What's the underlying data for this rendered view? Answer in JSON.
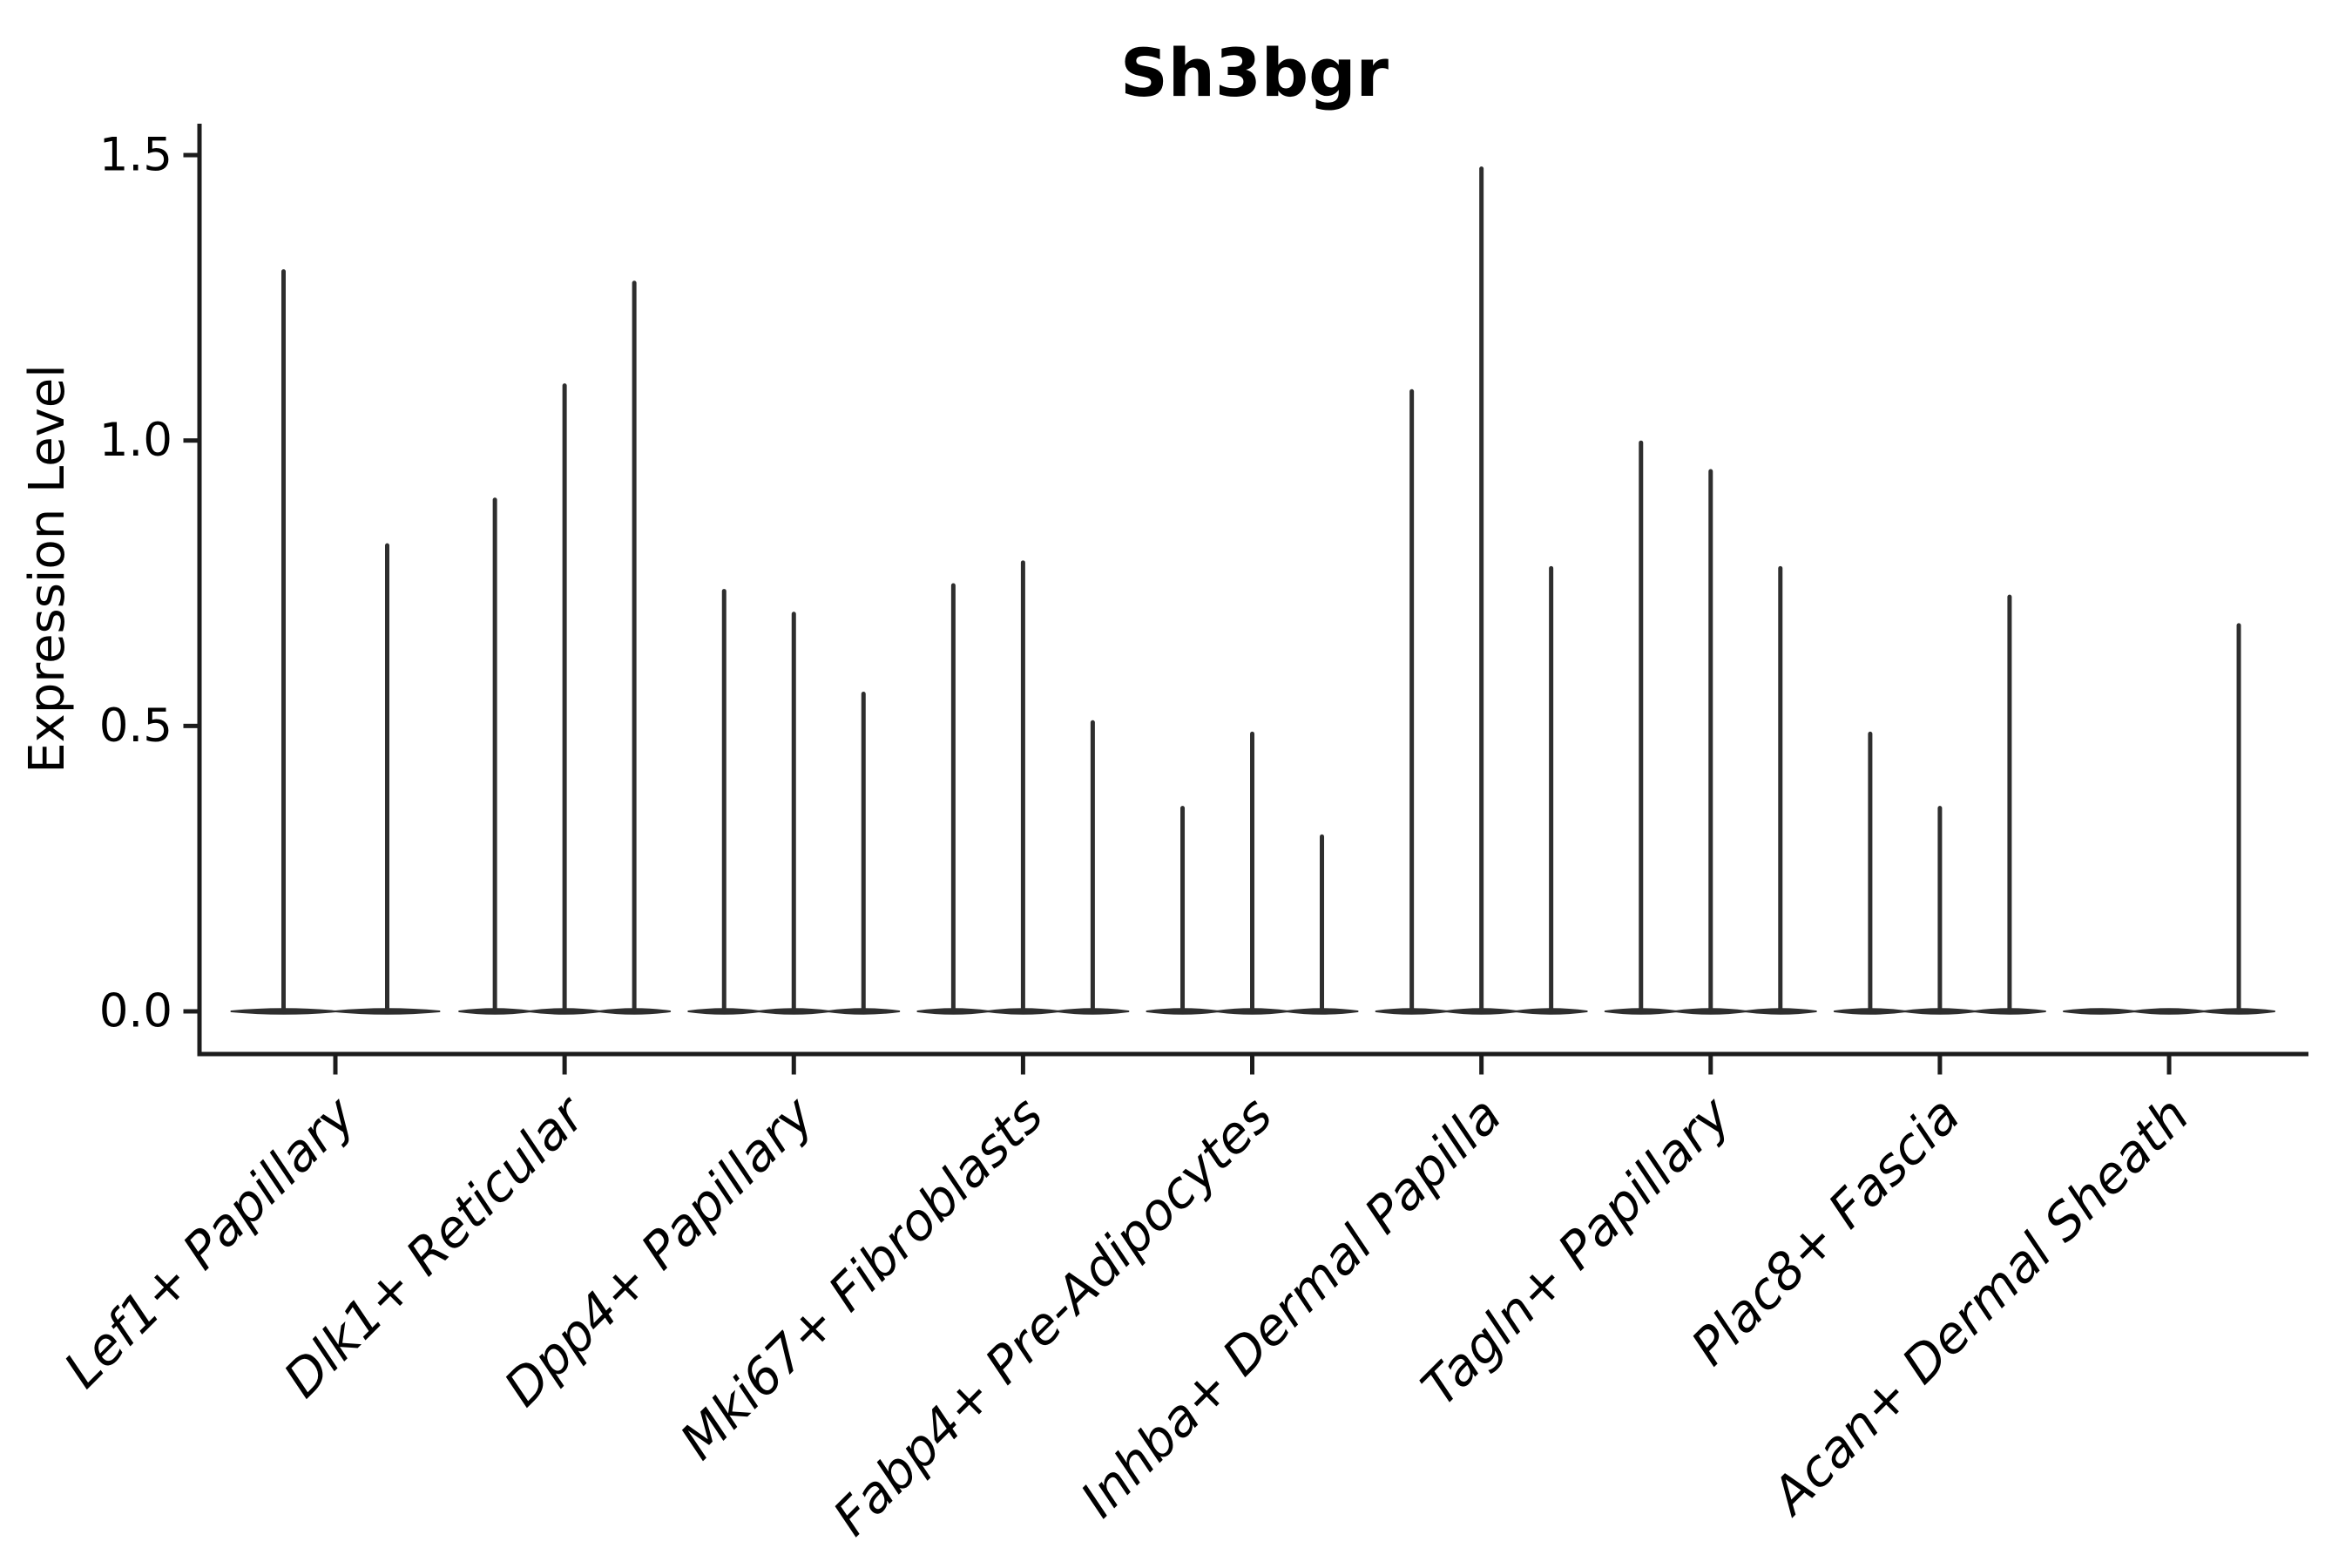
{
  "chart_data": {
    "type": "violin",
    "title": "Sh3bgr",
    "ylabel": "Expression Level",
    "xlabel": "",
    "ylim": [
      -0.07,
      1.56
    ],
    "yticks": [
      0.0,
      0.5,
      1.0,
      1.5
    ],
    "ytick_labels": [
      "0.0",
      "0.5",
      "1.0",
      "1.5"
    ],
    "grid": false,
    "legend": "none",
    "categories": [
      "Lef1+ Papillary",
      "Dlk1+ Reticular",
      "Dpp4+ Papillary",
      "Mki67+ Fibroblasts",
      "Fabp4+ Pre-Adipocytes",
      "Inhba+ Dermal Papilla",
      "Tagln+ Papillary",
      "Plac8+ Fascia",
      "Acan+ Dermal Sheath"
    ],
    "groups": [
      {
        "category": "Lef1+ Papillary",
        "peak_values": [
          1.3,
          0.82
        ]
      },
      {
        "category": "Dlk1+ Reticular",
        "peak_values": [
          0.9,
          1.1,
          1.28
        ]
      },
      {
        "category": "Dpp4+ Papillary",
        "peak_values": [
          0.74,
          0.7,
          0.56
        ]
      },
      {
        "category": "Mki67+ Fibroblasts",
        "peak_values": [
          0.75,
          0.79,
          0.51
        ]
      },
      {
        "category": "Fabp4+ Pre-Adipocytes",
        "peak_values": [
          0.36,
          0.49,
          0.31
        ]
      },
      {
        "category": "Inhba+ Dermal Papilla",
        "peak_values": [
          1.09,
          1.48,
          0.78
        ]
      },
      {
        "category": "Tagln+ Papillary",
        "peak_values": [
          1.0,
          0.95,
          0.78
        ]
      },
      {
        "category": "Plac8+ Fascia",
        "peak_values": [
          0.49,
          0.36,
          0.73
        ]
      },
      {
        "category": "Acan+ Dermal Sheath",
        "peak_values": [
          0.0,
          0.0,
          0.68
        ]
      }
    ]
  },
  "colors": {
    "axis_line": "#1c1c1c",
    "violin": "#2e2e2e",
    "text": "#000000",
    "background": "#ffffff"
  }
}
